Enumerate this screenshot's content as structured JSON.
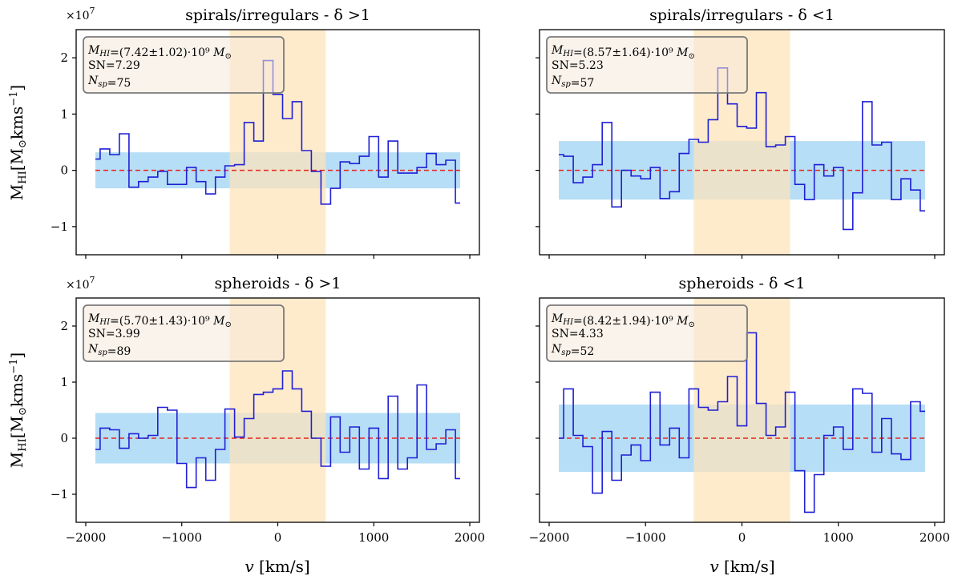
{
  "figure": {
    "xlabel": "v [km/s]",
    "ylabel": "M_HI [M_⊙ kms⁻¹]",
    "y_multiplier": "×10^7",
    "colors": {
      "spectrum": "#1f1fd6",
      "noise_band": "#a9d8f5",
      "signal_band": "#fde3b8",
      "zero_line": "#e8231e",
      "box_fill": "#f6eadb",
      "box_edge": "#7a7a7a"
    }
  },
  "chart_data": [
    {
      "type": "line",
      "style": "step",
      "title": "spirals/irregulars - δ >1",
      "xlabel": "v [km/s]",
      "ylabel": "M_HI [M_⊙ kms⁻¹]",
      "xlim": [
        -2100,
        2100
      ],
      "ylim": [
        -1.5,
        2.5
      ],
      "y_unit_multiplier": "×10^7",
      "x_ticks": [
        -2000,
        -1000,
        0,
        1000,
        2000
      ],
      "y_ticks": [
        -1,
        0,
        1,
        2
      ],
      "noise_band": [
        -0.32,
        0.32
      ],
      "signal_window": [
        -500,
        500
      ],
      "annotation": {
        "mhi": "M_HI=(7.42±1.02)·10⁹ M_⊙",
        "sn": "SN=7.29",
        "nsp": "N_sp=75"
      },
      "x": [
        -1900,
        -1800,
        -1700,
        -1600,
        -1500,
        -1400,
        -1300,
        -1200,
        -1100,
        -1000,
        -900,
        -800,
        -700,
        -600,
        -500,
        -400,
        -300,
        -200,
        -100,
        0,
        100,
        200,
        300,
        400,
        500,
        600,
        700,
        800,
        900,
        1000,
        1100,
        1200,
        1300,
        1400,
        1500,
        1600,
        1700,
        1800,
        1900
      ],
      "values": [
        0.2,
        0.38,
        0.28,
        0.65,
        -0.3,
        -0.2,
        -0.12,
        -0.02,
        -0.25,
        -0.25,
        0.05,
        -0.2,
        -0.42,
        -0.12,
        0.08,
        0.1,
        0.85,
        0.52,
        1.95,
        1.35,
        0.92,
        1.22,
        0.35,
        -0.02,
        -0.6,
        -0.32,
        0.15,
        0.12,
        0.25,
        0.6,
        -0.12,
        0.52,
        -0.05,
        -0.05,
        0.05,
        0.3,
        0.1,
        0.18,
        -0.58
      ]
    },
    {
      "type": "line",
      "style": "step",
      "title": "spirals/irregulars - δ <1",
      "xlabel": "v [km/s]",
      "xlim": [
        -2100,
        2100
      ],
      "ylim": [
        -1.5,
        2.5
      ],
      "x_ticks": [
        -2000,
        -1000,
        0,
        1000,
        2000
      ],
      "y_ticks": [
        -1,
        0,
        1,
        2
      ],
      "noise_band": [
        -0.52,
        0.52
      ],
      "signal_window": [
        -500,
        500
      ],
      "annotation": {
        "mhi": "M_HI=(8.57±1.64)·10⁹ M_⊙",
        "sn": "SN=5.23",
        "nsp": "N_sp=57"
      },
      "x": [
        -1900,
        -1800,
        -1700,
        -1600,
        -1500,
        -1400,
        -1300,
        -1200,
        -1100,
        -1000,
        -900,
        -800,
        -700,
        -600,
        -500,
        -400,
        -300,
        -200,
        -100,
        0,
        100,
        200,
        300,
        400,
        500,
        600,
        700,
        800,
        900,
        1000,
        1100,
        1200,
        1300,
        1400,
        1500,
        1600,
        1700,
        1800,
        1900
      ],
      "values": [
        0.28,
        0.25,
        -0.22,
        -0.12,
        0.1,
        0.85,
        -0.65,
        0.0,
        -0.1,
        -0.15,
        0.05,
        -0.5,
        -0.38,
        0.3,
        0.55,
        0.5,
        0.9,
        1.82,
        1.18,
        0.78,
        0.75,
        1.38,
        0.42,
        0.45,
        0.6,
        -0.25,
        -0.52,
        0.1,
        -0.1,
        0.05,
        -1.05,
        -0.4,
        1.22,
        0.45,
        0.5,
        -0.52,
        -0.15,
        -0.35,
        -0.72
      ]
    },
    {
      "type": "line",
      "style": "step",
      "title": "spheroids - δ >1",
      "xlabel": "v [km/s]",
      "ylabel": "M_HI [M_⊙ kms⁻¹]",
      "xlim": [
        -2100,
        2100
      ],
      "ylim": [
        -1.5,
        2.5
      ],
      "y_unit_multiplier": "×10^7",
      "x_ticks": [
        -2000,
        -1000,
        0,
        1000,
        2000
      ],
      "y_ticks": [
        -1,
        0,
        1,
        2
      ],
      "noise_band": [
        -0.45,
        0.45
      ],
      "signal_window": [
        -500,
        500
      ],
      "annotation": {
        "mhi": "M_HI=(5.70±1.43)·10⁹ M_⊙",
        "sn": "SN=3.99",
        "nsp": "N_sp=89"
      },
      "x": [
        -1900,
        -1800,
        -1700,
        -1600,
        -1500,
        -1400,
        -1300,
        -1200,
        -1100,
        -1000,
        -900,
        -800,
        -700,
        -600,
        -500,
        -400,
        -300,
        -200,
        -100,
        0,
        100,
        200,
        300,
        400,
        500,
        600,
        700,
        800,
        900,
        1000,
        1100,
        1200,
        1300,
        1400,
        1500,
        1600,
        1700,
        1800,
        1900
      ],
      "values": [
        -0.2,
        0.18,
        0.15,
        -0.18,
        0.08,
        0.0,
        0.05,
        0.55,
        0.5,
        -0.45,
        -0.88,
        -0.35,
        -0.75,
        -0.2,
        0.52,
        0.02,
        0.35,
        0.78,
        0.82,
        0.88,
        1.2,
        0.88,
        0.48,
        0.0,
        -0.5,
        0.38,
        -0.25,
        0.2,
        -0.55,
        0.18,
        -0.72,
        0.75,
        -0.55,
        -0.35,
        0.95,
        -0.2,
        -0.1,
        0.15,
        -0.72
      ]
    },
    {
      "type": "line",
      "style": "step",
      "title": "spheroids - δ <1",
      "xlabel": "v [km/s]",
      "xlim": [
        -2100,
        2100
      ],
      "ylim": [
        -1.5,
        2.5
      ],
      "x_ticks": [
        -2000,
        -1000,
        0,
        1000,
        2000
      ],
      "y_ticks": [
        -1,
        0,
        1,
        2
      ],
      "noise_band": [
        -0.6,
        0.6
      ],
      "signal_window": [
        -500,
        500
      ],
      "annotation": {
        "mhi": "M_HI=(8.42±1.94)·10⁹ M_⊙",
        "sn": "SN=4.33",
        "nsp": "N_sp=52"
      },
      "x": [
        -1900,
        -1800,
        -1700,
        -1600,
        -1500,
        -1400,
        -1300,
        -1200,
        -1100,
        -1000,
        -900,
        -800,
        -700,
        -600,
        -500,
        -400,
        -300,
        -200,
        -100,
        0,
        100,
        200,
        300,
        400,
        500,
        600,
        700,
        800,
        900,
        1000,
        1100,
        1200,
        1300,
        1400,
        1500,
        1600,
        1700,
        1800,
        1900
      ],
      "values": [
        0.0,
        0.88,
        0.05,
        -0.15,
        -0.98,
        0.12,
        -0.75,
        -0.3,
        -0.12,
        -0.4,
        0.82,
        -0.12,
        0.18,
        -0.35,
        0.88,
        0.55,
        0.5,
        0.65,
        1.1,
        0.22,
        1.88,
        0.62,
        0.05,
        0.2,
        0.82,
        -0.58,
        -1.32,
        -0.65,
        0.05,
        0.2,
        -0.2,
        0.88,
        0.8,
        -0.25,
        0.35,
        -0.28,
        -0.38,
        0.65,
        0.48
      ]
    }
  ]
}
